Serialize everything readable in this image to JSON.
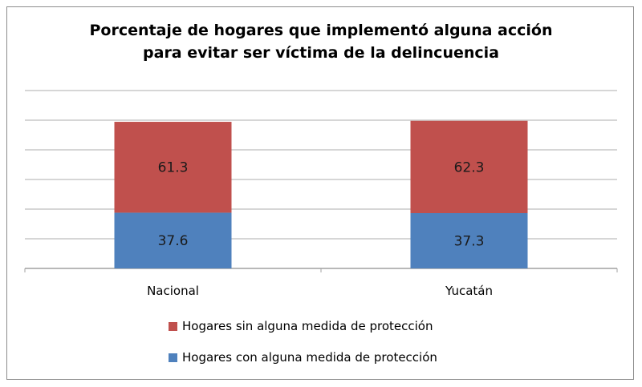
{
  "chart_data": {
    "type": "bar",
    "stacked": true,
    "title_line1": "Porcentaje de hogares que implementó alguna acción",
    "title_line2": "para evitar ser víctima de la delincuencia",
    "categories": [
      "Nacional",
      "Yucatán"
    ],
    "series": [
      {
        "name": "Hogares con alguna medida de protección",
        "values": [
          37.6,
          37.3
        ],
        "color": "#4f81bd"
      },
      {
        "name": "Hogares sin alguna medida de protección",
        "values": [
          61.3,
          62.3
        ],
        "color": "#c0504d"
      }
    ],
    "ylim": [
      0,
      120
    ],
    "y_gridlines": [
      20,
      40,
      60,
      80,
      100,
      120
    ],
    "y_tick_labels_shown": false,
    "grid": true,
    "legend_placement": "bottom",
    "legend_order": [
      "Hogares sin alguna medida de protección",
      "Hogares con alguna medida de protección"
    ]
  }
}
